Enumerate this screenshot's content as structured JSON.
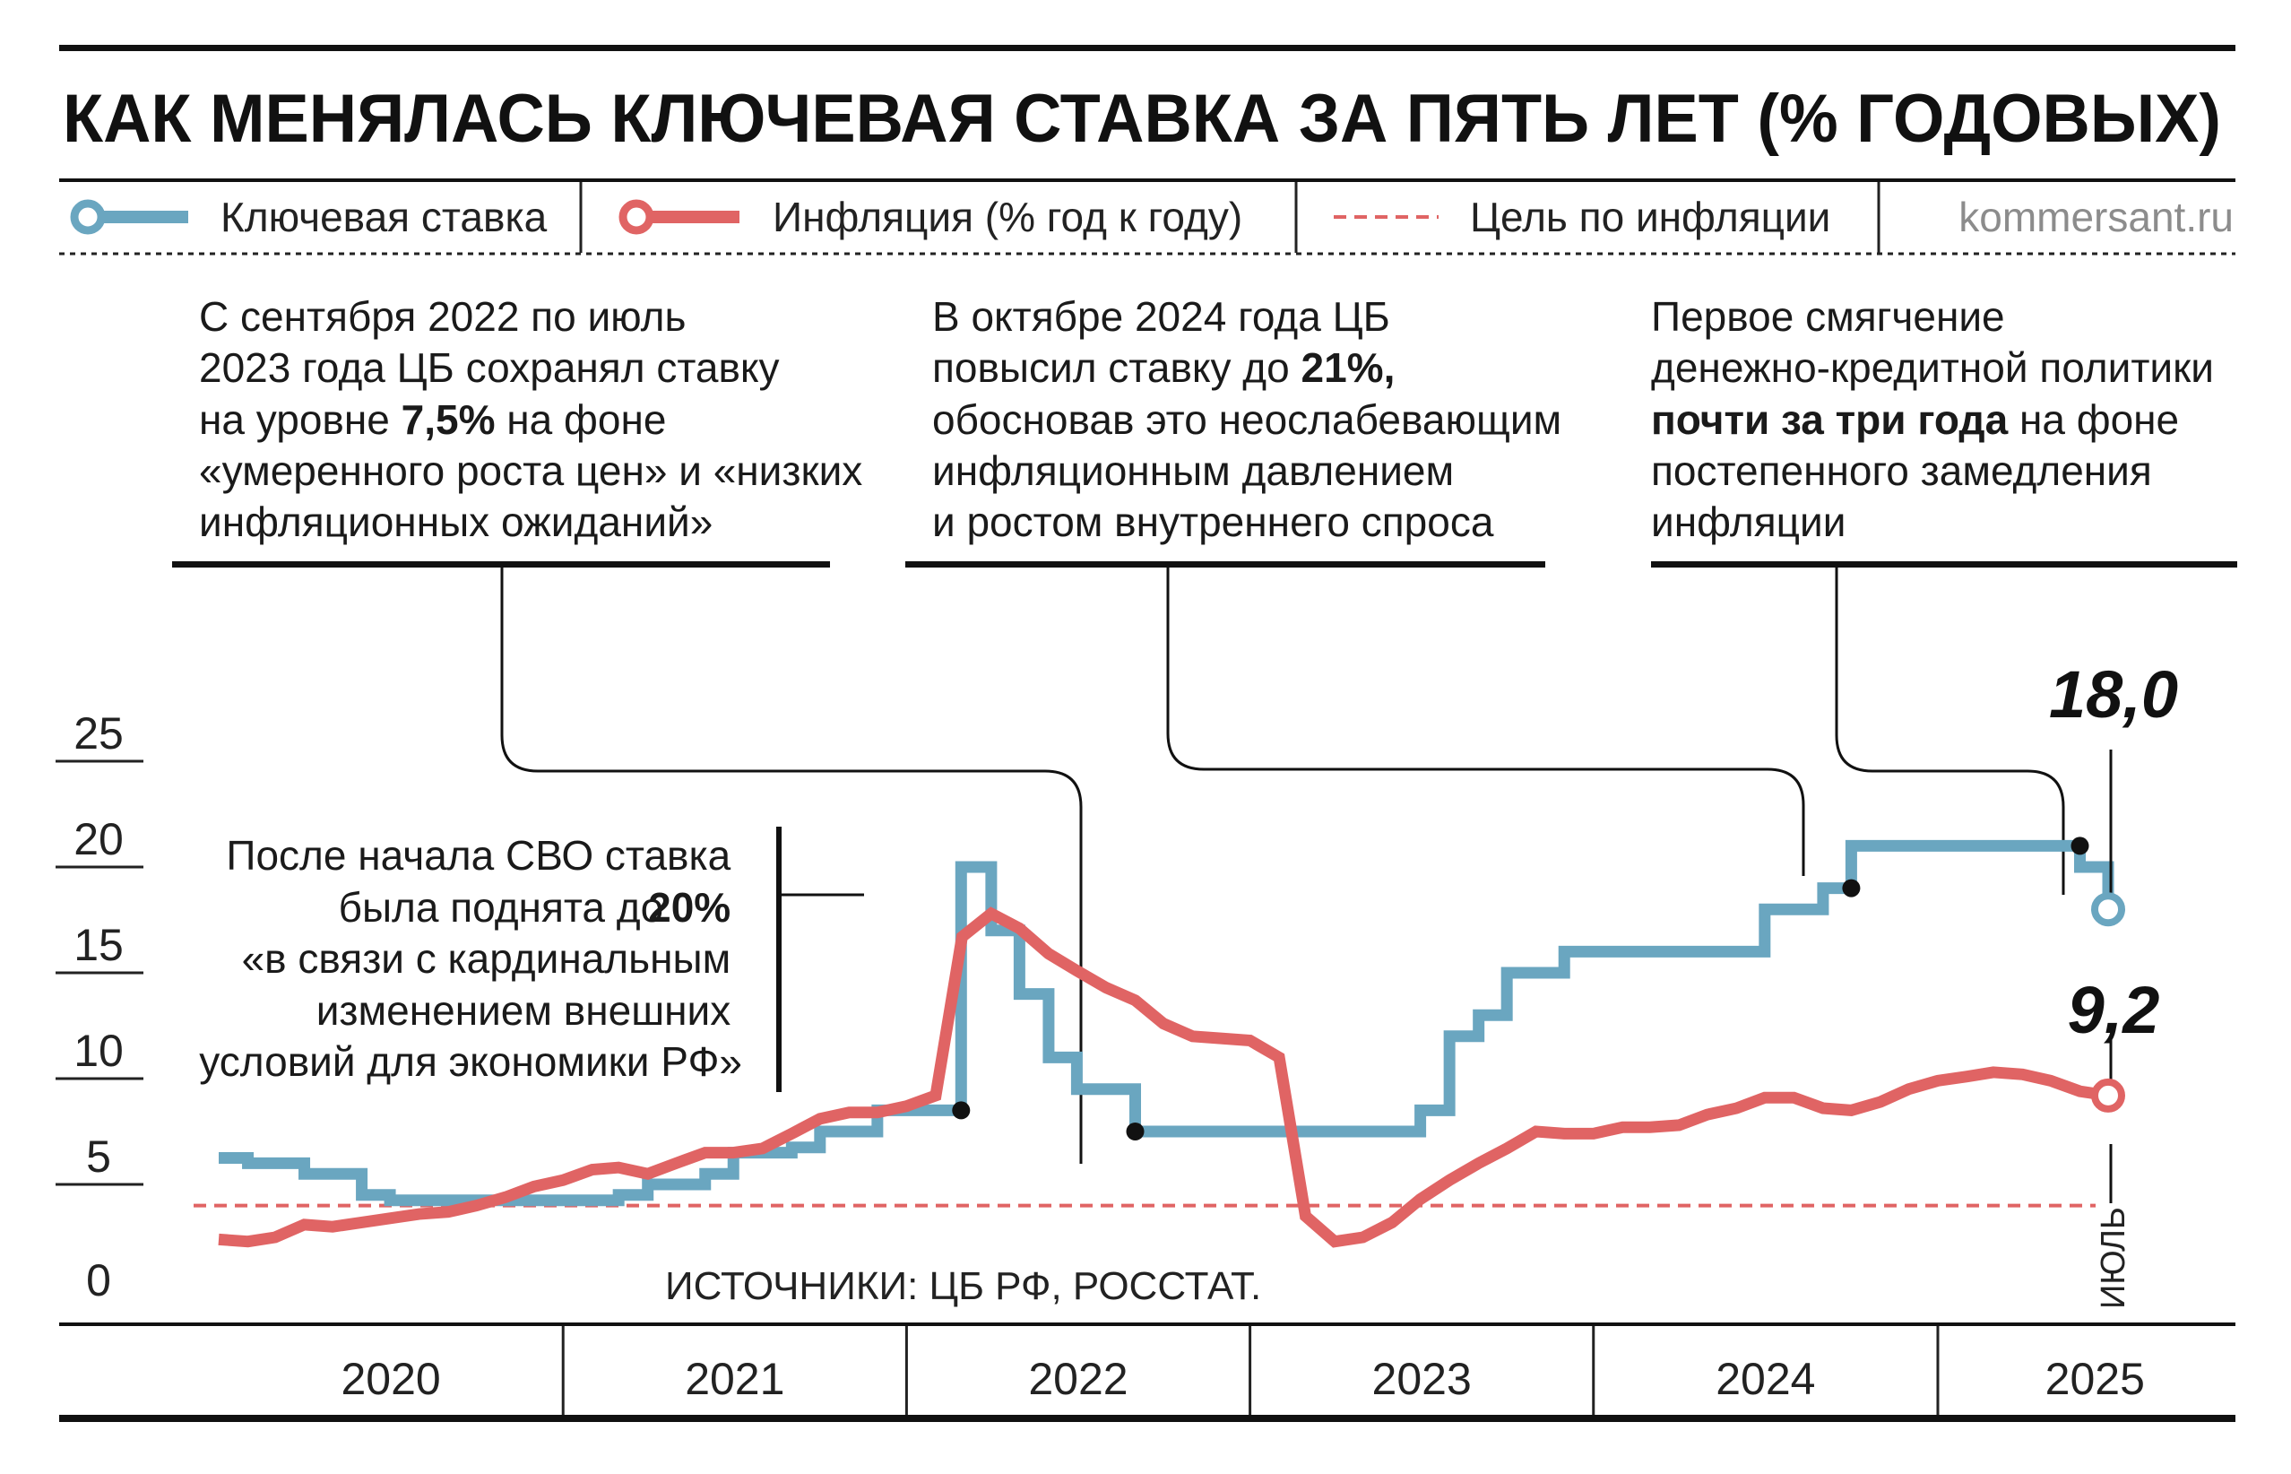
{
  "header": {
    "title": "КАК МЕНЯЛАСЬ КЛЮЧЕВАЯ СТАВКА ЗА ПЯТЬ ЛЕТ (% ГОДОВЫХ)",
    "site": "kommersant.ru"
  },
  "legend": {
    "rate": "Ключевая ставка",
    "inflation": "Инфляция (% год к году)",
    "target": "Цель по инфляции"
  },
  "annotations": {
    "a1": [
      "С сентября 2022 по июль",
      "2023 года ЦБ сохранял ставку",
      "на уровне ",
      "7,5%",
      " на фоне",
      "«умеренного роста цен» и «низких",
      "инфляционных ожиданий»"
    ],
    "a2": [
      "В октябре 2024 года ЦБ",
      "повысил ставку до ",
      "21%,",
      "обосновав это неослабевающим",
      "инфляционным давлением",
      "и ростом внутреннего спроса"
    ],
    "a3": [
      "Первое смягчение",
      "денежно-кредитной политики",
      "почти за три года",
      " на фоне",
      "постепенного замедления",
      "инфляции"
    ],
    "a4": [
      "После начала СВО ставка",
      "была поднята до ",
      "20%",
      "«в связи с кардинальным",
      "изменением внешних",
      "условий для экономики РФ»"
    ]
  },
  "source": "ИСТОЧНИКИ:  ЦБ РФ, РОССТАТ.",
  "end_labels": {
    "rate": "18,0",
    "inflation": "9,2",
    "month": "ИЮЛЬ"
  },
  "colors": {
    "rate": "#6aa6c0",
    "inflation": "#e06464",
    "target": "#e06464",
    "text": "#111111",
    "site": "#8c8c8c"
  },
  "chart_data": {
    "type": "line",
    "title": "КАК МЕНЯЛАСЬ КЛЮЧЕВАЯ СТАВКА ЗА ПЯТЬ ЛЕТ (% ГОДОВЫХ)",
    "xlabel": "",
    "ylabel": "",
    "y_ticks": [
      0,
      5,
      10,
      15,
      20,
      25
    ],
    "ylim": [
      0,
      25
    ],
    "x_periods": [
      "2020",
      "2021",
      "2022",
      "2023",
      "2024",
      "2025"
    ],
    "x_range": [
      "2020-01",
      "2025-07"
    ],
    "target_line": 4,
    "legend_position": "top",
    "grid": false,
    "series": [
      {
        "name": "Ключевая ставка",
        "step": true,
        "x": [
          "2020-01",
          "2020-02",
          "2020-04",
          "2020-06",
          "2020-07",
          "2021-03",
          "2021-04",
          "2021-06",
          "2021-07",
          "2021-09",
          "2021-10",
          "2021-12",
          "2022-02-28",
          "2022-04",
          "2022-05",
          "2022-06",
          "2022-07",
          "2022-09",
          "2023-07",
          "2023-08",
          "2023-09",
          "2023-10",
          "2023-12",
          "2024-07",
          "2024-09",
          "2024-10",
          "2025-06",
          "2025-07"
        ],
        "values": [
          6.25,
          6.0,
          5.5,
          4.5,
          4.25,
          4.5,
          5.0,
          5.5,
          6.5,
          6.75,
          7.5,
          8.5,
          20.0,
          17.0,
          14.0,
          11.0,
          9.5,
          7.5,
          8.5,
          12.0,
          13.0,
          15.0,
          16.0,
          18.0,
          19.0,
          21.0,
          20.0,
          18.0
        ]
      },
      {
        "name": "Инфляция (% год к году)",
        "x": [
          "2020-01",
          "2020-02",
          "2020-03",
          "2020-04",
          "2020-05",
          "2020-06",
          "2020-07",
          "2020-08",
          "2020-09",
          "2020-10",
          "2020-11",
          "2020-12",
          "2021-01",
          "2021-02",
          "2021-03",
          "2021-04",
          "2021-05",
          "2021-06",
          "2021-07",
          "2021-08",
          "2021-09",
          "2021-10",
          "2021-11",
          "2021-12",
          "2022-01",
          "2022-02",
          "2022-03",
          "2022-04",
          "2022-05",
          "2022-06",
          "2022-07",
          "2022-08",
          "2022-09",
          "2022-10",
          "2022-11",
          "2022-12",
          "2023-01",
          "2023-02",
          "2023-03",
          "2023-04",
          "2023-05",
          "2023-06",
          "2023-07",
          "2023-08",
          "2023-09",
          "2023-10",
          "2023-11",
          "2023-12",
          "2024-01",
          "2024-02",
          "2024-03",
          "2024-04",
          "2024-05",
          "2024-06",
          "2024-07",
          "2024-08",
          "2024-09",
          "2024-10",
          "2024-11",
          "2024-12",
          "2025-01",
          "2025-02",
          "2025-03",
          "2025-04",
          "2025-05",
          "2025-06",
          "2025-07"
        ],
        "values": [
          2.4,
          2.3,
          2.5,
          3.1,
          3.0,
          3.2,
          3.4,
          3.6,
          3.7,
          4.0,
          4.4,
          4.9,
          5.2,
          5.7,
          5.8,
          5.5,
          6.0,
          6.5,
          6.5,
          6.7,
          7.4,
          8.1,
          8.4,
          8.4,
          8.7,
          9.2,
          16.7,
          17.8,
          17.1,
          15.9,
          15.1,
          14.3,
          13.7,
          12.6,
          12.0,
          11.9,
          11.8,
          11.0,
          3.5,
          2.3,
          2.5,
          3.2,
          4.3,
          5.2,
          6.0,
          6.7,
          7.5,
          7.4,
          7.4,
          7.7,
          7.7,
          7.8,
          8.3,
          8.6,
          9.1,
          9.1,
          8.6,
          8.5,
          8.9,
          9.5,
          9.9,
          10.1,
          10.3,
          10.2,
          9.9,
          9.4,
          9.2
        ]
      }
    ]
  }
}
